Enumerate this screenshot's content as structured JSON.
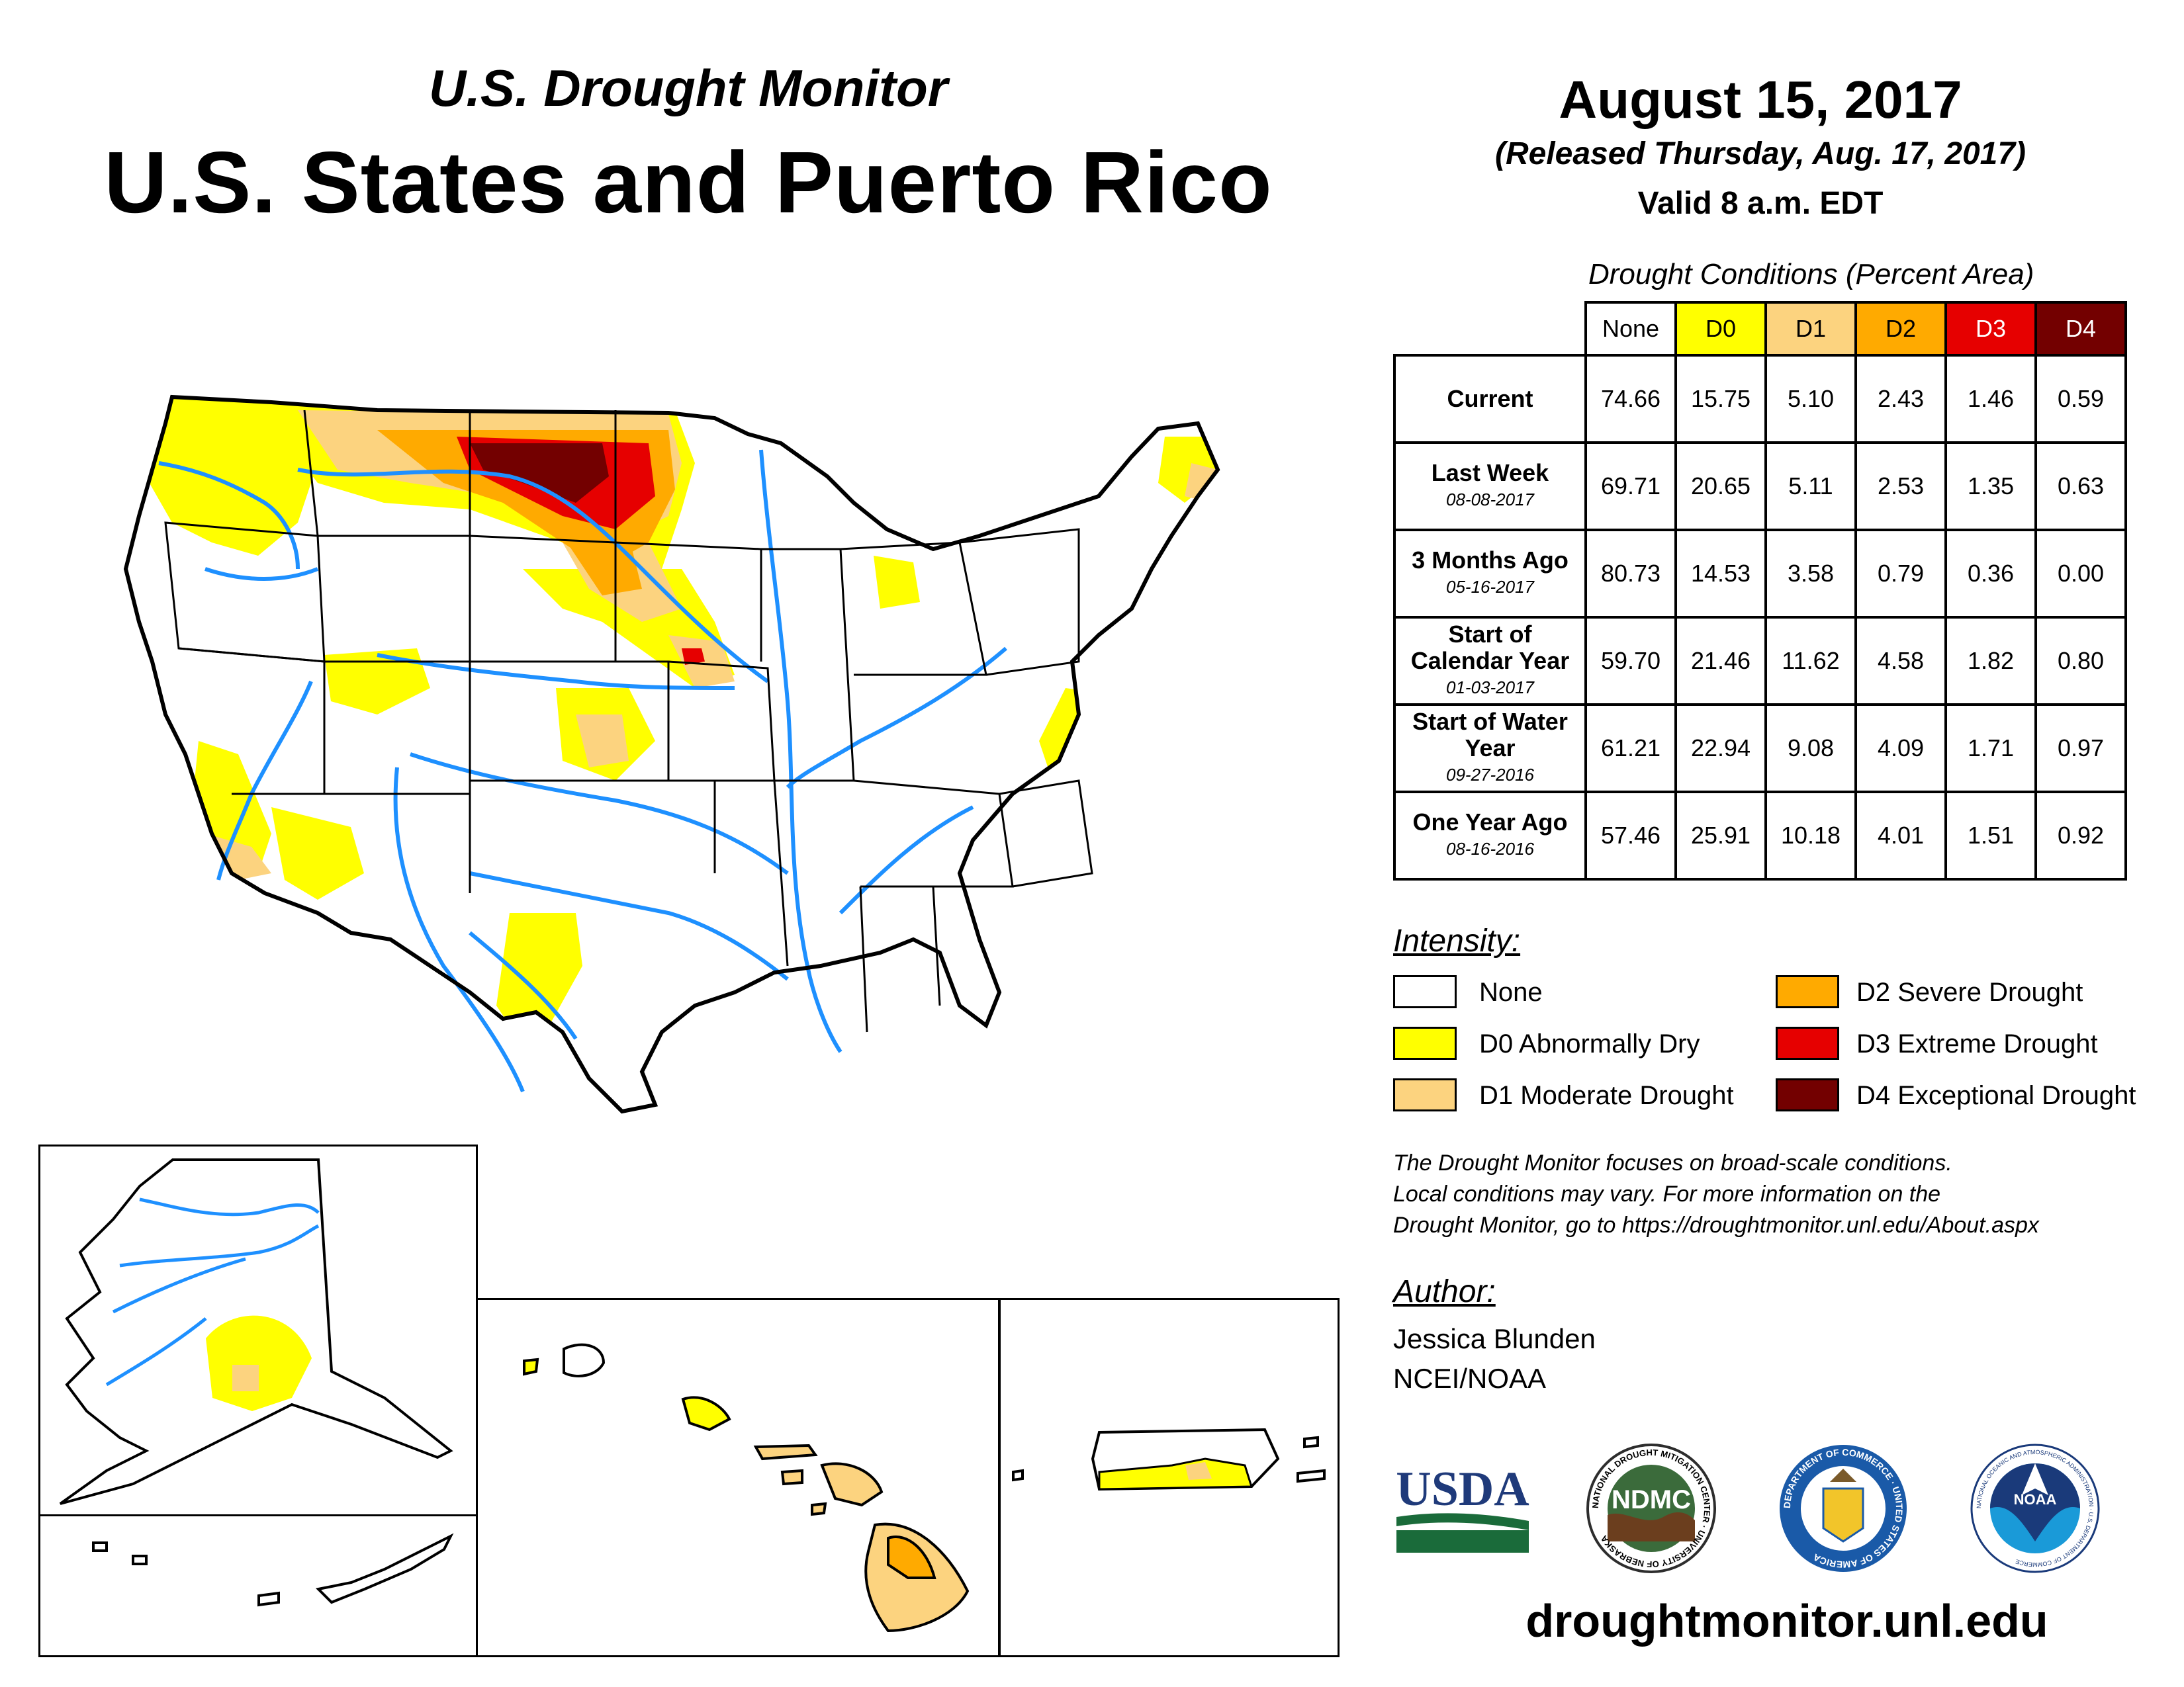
{
  "header": {
    "subtitle": "U.S. Drought Monitor",
    "title": "U.S. States and Puerto Rico",
    "date": "August 15, 2017",
    "released": "(Released Thursday, Aug. 17, 2017)",
    "valid": "Valid 8 a.m. EDT"
  },
  "table": {
    "caption": "Drought Conditions (Percent Area)",
    "columns": [
      "None",
      "D0",
      "D1",
      "D2",
      "D3",
      "D4"
    ],
    "column_colors": [
      "#ffffff",
      "#ffff00",
      "#fcd37f",
      "#ffaa00",
      "#e60000",
      "#730000"
    ],
    "rows": [
      {
        "label": "Current",
        "date": "",
        "values": [
          "74.66",
          "15.75",
          "5.10",
          "2.43",
          "1.46",
          "0.59"
        ]
      },
      {
        "label": "Last Week",
        "date": "08-08-2017",
        "values": [
          "69.71",
          "20.65",
          "5.11",
          "2.53",
          "1.35",
          "0.63"
        ]
      },
      {
        "label": "3 Months Ago",
        "date": "05-16-2017",
        "values": [
          "80.73",
          "14.53",
          "3.58",
          "0.79",
          "0.36",
          "0.00"
        ]
      },
      {
        "label": "Start of Calendar Year",
        "date": "01-03-2017",
        "values": [
          "59.70",
          "21.46",
          "11.62",
          "4.58",
          "1.82",
          "0.80"
        ]
      },
      {
        "label": "Start of Water Year",
        "date": "09-27-2016",
        "values": [
          "61.21",
          "22.94",
          "9.08",
          "4.09",
          "1.71",
          "0.97"
        ]
      },
      {
        "label": "One Year Ago",
        "date": "08-16-2016",
        "values": [
          "57.46",
          "25.91",
          "10.18",
          "4.01",
          "1.51",
          "0.92"
        ]
      }
    ]
  },
  "legend": {
    "title": "Intensity:",
    "items": [
      {
        "label": "None",
        "color": "#ffffff"
      },
      {
        "label": "D0 Abnormally Dry",
        "color": "#ffff00"
      },
      {
        "label": "D1 Moderate Drought",
        "color": "#fcd37f"
      },
      {
        "label": "D2 Severe Drought",
        "color": "#ffaa00"
      },
      {
        "label": "D3 Extreme Drought",
        "color": "#e60000"
      },
      {
        "label": "D4 Exceptional Drought",
        "color": "#730000"
      }
    ]
  },
  "note": {
    "line1": "The Drought Monitor focuses on broad-scale conditions.",
    "line2": "Local conditions may vary. For more information on the",
    "line3": "Drought Monitor, go to https://droughtmonitor.unl.edu/About.aspx"
  },
  "author": {
    "title": "Author:",
    "name": "Jessica Blunden",
    "org": "NCEI/NOAA"
  },
  "logos": {
    "usda": "USDA",
    "ndmc": "NDMC",
    "ndmc_ring": "NATIONAL DROUGHT MITIGATION CENTER · UNIVERSITY OF NEBRASKA",
    "commerce_ring": "DEPARTMENT OF COMMERCE · UNITED STATES OF AMERICA",
    "noaa": "NOAA",
    "noaa_ring": "NATIONAL OCEANIC AND ATMOSPHERIC ADMINISTRATION · U.S. DEPARTMENT OF COMMERCE"
  },
  "footer": {
    "site": "droughtmonitor.unl.edu"
  }
}
